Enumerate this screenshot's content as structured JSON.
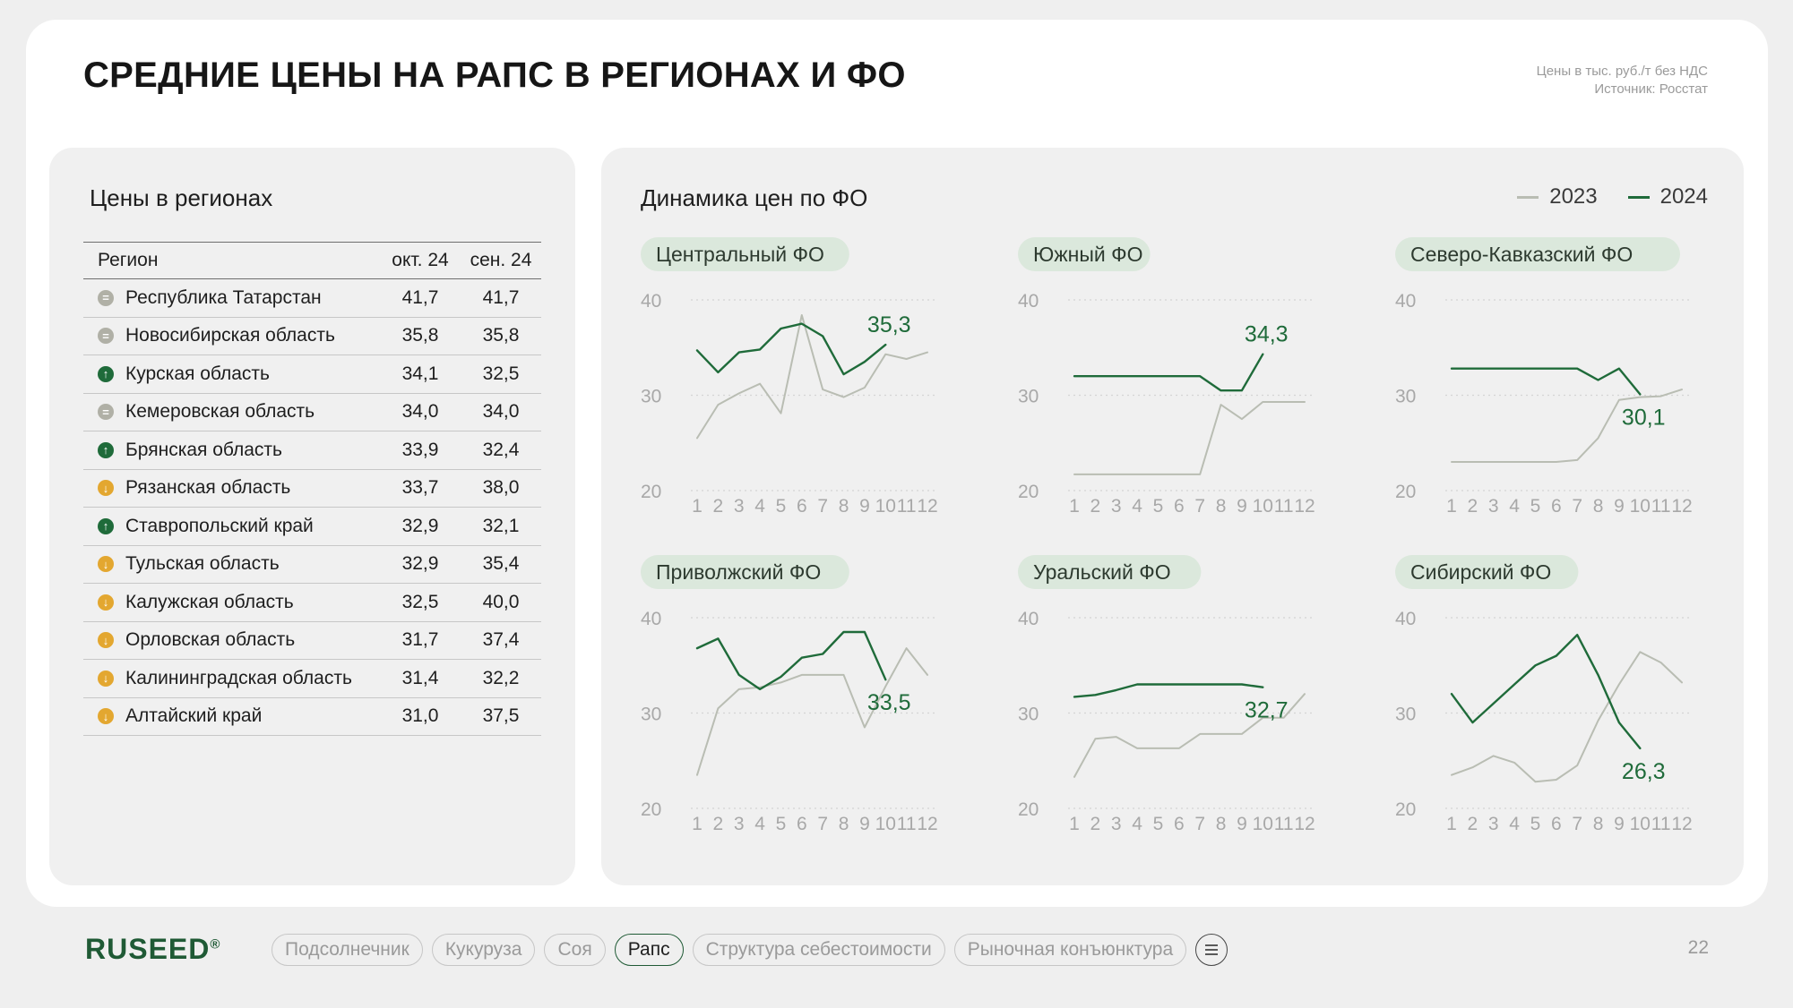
{
  "title": "СРЕДНИЕ ЦЕНЫ НА РАПС В РЕГИОНАХ И ФО",
  "note": {
    "line1": "Цены в тыс. руб./т без НДС",
    "line2": "Источник: Росстат"
  },
  "table_section": {
    "heading": "Цены в регионах",
    "columns": [
      "Регион",
      "окт. 24",
      "сен. 24"
    ],
    "rows": [
      {
        "region": "Республика Татарстан",
        "oct": "41,7",
        "sep": "41,7",
        "trend": "flat"
      },
      {
        "region": "Новосибирская область",
        "oct": "35,8",
        "sep": "35,8",
        "trend": "flat"
      },
      {
        "region": "Курская область",
        "oct": "34,1",
        "sep": "32,5",
        "trend": "up"
      },
      {
        "region": "Кемеровская область",
        "oct": "34,0",
        "sep": "34,0",
        "trend": "flat"
      },
      {
        "region": "Брянская область",
        "oct": "33,9",
        "sep": "32,4",
        "trend": "up"
      },
      {
        "region": "Рязанская область",
        "oct": "33,7",
        "sep": "38,0",
        "trend": "down"
      },
      {
        "region": "Ставропольский край",
        "oct": "32,9",
        "sep": "32,1",
        "trend": "up"
      },
      {
        "region": "Тульская область",
        "oct": "32,9",
        "sep": "35,4",
        "trend": "down"
      },
      {
        "region": "Калужская область",
        "oct": "32,5",
        "sep": "40,0",
        "trend": "down"
      },
      {
        "region": "Орловская область",
        "oct": "31,7",
        "sep": "37,4",
        "trend": "down"
      },
      {
        "region": "Калининградская область",
        "oct": "31,4",
        "sep": "32,2",
        "trend": "down"
      },
      {
        "region": "Алтайский край",
        "oct": "31,0",
        "sep": "37,5",
        "trend": "down"
      }
    ]
  },
  "trend_icons": {
    "up": {
      "icon": "arrow-up-icon",
      "glyph": "↑",
      "color": "#1f6b3a"
    },
    "down": {
      "icon": "arrow-down-icon",
      "glyph": "↓",
      "color": "#e3a730"
    },
    "flat": {
      "icon": "equals-icon",
      "glyph": "=",
      "color": "#b0b0a6"
    }
  },
  "dynamics": {
    "heading": "Динамика цен по ФО",
    "legend": [
      {
        "label": "2023",
        "color": "#b9bdb3"
      },
      {
        "label": "2024",
        "color": "#1f6b3a"
      }
    ]
  },
  "colors": {
    "accent": "#1f6b3a",
    "series_2023": "#b9bdb3",
    "pill_bg": "#dbe8dc",
    "tick": "#a8a8a8"
  },
  "chart_data": [
    {
      "type": "line",
      "title": "Центральный ФО",
      "categories": [
        "1",
        "2",
        "3",
        "4",
        "5",
        "6",
        "7",
        "8",
        "9",
        "10",
        "11",
        "12"
      ],
      "ylim": [
        20,
        40
      ],
      "yticks": [
        20,
        30,
        40
      ],
      "series": [
        {
          "name": "2023",
          "values": [
            25.5,
            29,
            30.2,
            31.2,
            28.1,
            38.4,
            30.6,
            29.8,
            30.8,
            34.3,
            33.8,
            34.5
          ]
        },
        {
          "name": "2024",
          "values": [
            34.7,
            32.4,
            34.5,
            34.8,
            37.0,
            37.5,
            36.2,
            32.2,
            33.5,
            35.3,
            null,
            null
          ]
        }
      ],
      "annotation": {
        "label": "35,3",
        "series": "2024",
        "index": 9
      }
    },
    {
      "type": "line",
      "title": "Южный ФО",
      "categories": [
        "1",
        "2",
        "3",
        "4",
        "5",
        "6",
        "7",
        "8",
        "9",
        "10",
        "11",
        "12"
      ],
      "ylim": [
        20,
        40
      ],
      "yticks": [
        20,
        30,
        40
      ],
      "series": [
        {
          "name": "2023",
          "values": [
            21.7,
            21.7,
            21.7,
            21.7,
            21.7,
            21.7,
            21.7,
            29.0,
            27.5,
            29.3,
            29.3,
            29.3
          ]
        },
        {
          "name": "2024",
          "values": [
            32.0,
            32.0,
            32.0,
            32.0,
            32.0,
            32.0,
            32.0,
            30.5,
            30.5,
            34.3,
            null,
            null
          ]
        }
      ],
      "annotation": {
        "label": "34,3",
        "series": "2024",
        "index": 9
      }
    },
    {
      "type": "line",
      "title": "Северо-Кавказский ФО",
      "categories": [
        "1",
        "2",
        "3",
        "4",
        "5",
        "6",
        "7",
        "8",
        "9",
        "10",
        "11",
        "12"
      ],
      "ylim": [
        20,
        40
      ],
      "yticks": [
        20,
        30,
        40
      ],
      "series": [
        {
          "name": "2023",
          "values": [
            23.0,
            23.0,
            23.0,
            23.0,
            23.0,
            23.0,
            23.2,
            25.5,
            29.5,
            29.8,
            29.9,
            30.6
          ]
        },
        {
          "name": "2024",
          "values": [
            32.8,
            32.8,
            32.8,
            32.8,
            32.8,
            32.8,
            32.8,
            31.6,
            32.8,
            30.1,
            null,
            null
          ]
        }
      ],
      "annotation": {
        "label": "30,1",
        "series": "2024",
        "index": 9
      }
    },
    {
      "type": "line",
      "title": "Приволжский ФО",
      "categories": [
        "1",
        "2",
        "3",
        "4",
        "5",
        "6",
        "7",
        "8",
        "9",
        "10",
        "11",
        "12"
      ],
      "ylim": [
        20,
        40
      ],
      "yticks": [
        20,
        30,
        40
      ],
      "series": [
        {
          "name": "2023",
          "values": [
            23.5,
            30.5,
            32.5,
            32.7,
            33.2,
            34.0,
            34.0,
            34.0,
            28.5,
            32.8,
            36.8,
            34.0
          ]
        },
        {
          "name": "2024",
          "values": [
            36.8,
            37.8,
            34.0,
            32.5,
            33.8,
            35.8,
            36.2,
            38.5,
            38.5,
            33.5,
            null,
            null
          ]
        }
      ],
      "annotation": {
        "label": "33,5",
        "series": "2024",
        "index": 9
      }
    },
    {
      "type": "line",
      "title": "Уральский ФО",
      "categories": [
        "1",
        "2",
        "3",
        "4",
        "5",
        "6",
        "7",
        "8",
        "9",
        "10",
        "11",
        "12"
      ],
      "ylim": [
        20,
        40
      ],
      "yticks": [
        20,
        30,
        40
      ],
      "series": [
        {
          "name": "2023",
          "values": [
            23.3,
            27.3,
            27.5,
            26.3,
            26.3,
            26.3,
            27.8,
            27.8,
            27.8,
            29.5,
            29.5,
            32.0
          ]
        },
        {
          "name": "2024",
          "values": [
            31.7,
            31.9,
            32.4,
            33.0,
            33.0,
            33.0,
            33.0,
            33.0,
            33.0,
            32.7,
            null,
            null
          ]
        }
      ],
      "annotation": {
        "label": "32,7",
        "series": "2024",
        "index": 9
      }
    },
    {
      "type": "line",
      "title": "Сибирский ФО",
      "categories": [
        "1",
        "2",
        "3",
        "4",
        "5",
        "6",
        "7",
        "8",
        "9",
        "10",
        "11",
        "12"
      ],
      "ylim": [
        20,
        40
      ],
      "yticks": [
        20,
        30,
        40
      ],
      "series": [
        {
          "name": "2023",
          "values": [
            23.5,
            24.3,
            25.5,
            24.8,
            22.8,
            23.0,
            24.5,
            29.2,
            33.0,
            36.4,
            35.3,
            33.2
          ]
        },
        {
          "name": "2024",
          "values": [
            32.0,
            29.0,
            31.0,
            33.0,
            35.0,
            36.0,
            38.2,
            34.0,
            29.0,
            26.3,
            null,
            null
          ]
        }
      ],
      "annotation": {
        "label": "26,3",
        "series": "2024",
        "index": 9
      }
    }
  ],
  "footer": {
    "logo": "RUSEED",
    "logo_mark": "®",
    "nav": [
      {
        "label": "Подсолнечник",
        "active": false
      },
      {
        "label": "Кукуруза",
        "active": false
      },
      {
        "label": "Соя",
        "active": false
      },
      {
        "label": "Рапс",
        "active": true
      },
      {
        "label": "Структура себестоимости",
        "active": false
      },
      {
        "label": "Рыночная конъюнктура",
        "active": false
      }
    ],
    "menu_icon": "menu-icon",
    "page_number": "22"
  }
}
